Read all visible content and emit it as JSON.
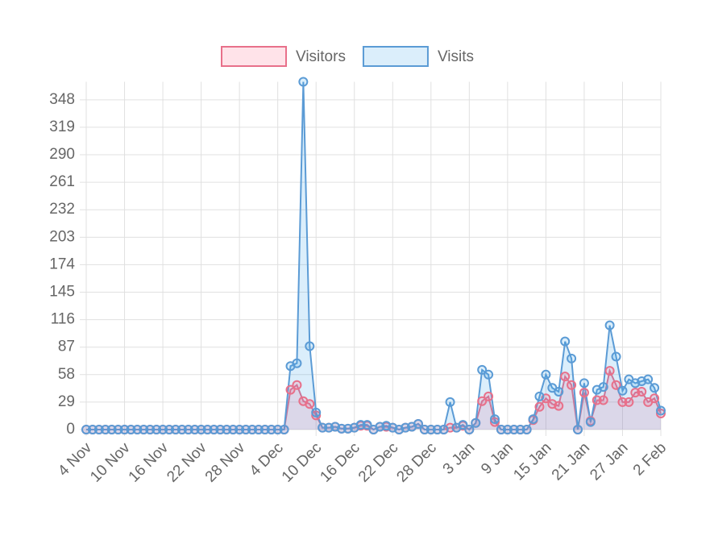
{
  "chart_data": {
    "type": "line",
    "categories": [
      "4 Nov",
      null,
      null,
      null,
      null,
      null,
      "10 Nov",
      null,
      null,
      null,
      null,
      null,
      "16 Nov",
      null,
      null,
      null,
      null,
      null,
      "22 Nov",
      null,
      null,
      null,
      null,
      null,
      "28 Nov",
      null,
      null,
      null,
      null,
      null,
      "4 Dec",
      null,
      null,
      null,
      null,
      null,
      "10 Dec",
      null,
      null,
      null,
      null,
      null,
      "16 Dec",
      null,
      null,
      null,
      null,
      null,
      "22 Dec",
      null,
      null,
      null,
      null,
      null,
      "28 Dec",
      null,
      null,
      null,
      null,
      null,
      "3 Jan",
      null,
      null,
      null,
      null,
      null,
      "9 Jan",
      null,
      null,
      null,
      null,
      null,
      "15 Jan",
      null,
      null,
      null,
      null,
      null,
      "21 Jan",
      null,
      null,
      null,
      null,
      null,
      "27 Jan",
      null,
      null,
      null,
      null,
      null,
      "2 Feb"
    ],
    "series": [
      {
        "name": "Visitors",
        "color": "#e8708a",
        "fill": "rgba(255,99,132,0.18)",
        "values": [
          0,
          0,
          0,
          0,
          0,
          0,
          0,
          0,
          0,
          0,
          0,
          0,
          0,
          0,
          0,
          0,
          0,
          0,
          0,
          0,
          0,
          0,
          0,
          0,
          0,
          0,
          0,
          0,
          0,
          0,
          0,
          0,
          42,
          47,
          30,
          27,
          15,
          2,
          2,
          3,
          1,
          1,
          2,
          4,
          4,
          0,
          3,
          3,
          2,
          0,
          2,
          3,
          6,
          0,
          0,
          0,
          0,
          2,
          2,
          4,
          0,
          7,
          30,
          35,
          8,
          0,
          0,
          0,
          0,
          0,
          10,
          24,
          33,
          27,
          25,
          56,
          47,
          0,
          39,
          9,
          31,
          31,
          62,
          47,
          29,
          29,
          39,
          40,
          29,
          33,
          17
        ]
      },
      {
        "name": "Visits",
        "color": "#5b9bd5",
        "fill": "rgba(54,162,235,0.18)",
        "values": [
          0,
          0,
          0,
          0,
          0,
          0,
          0,
          0,
          0,
          0,
          0,
          0,
          0,
          0,
          0,
          0,
          0,
          0,
          0,
          0,
          0,
          0,
          0,
          0,
          0,
          0,
          0,
          0,
          0,
          0,
          0,
          0,
          67,
          70,
          367,
          88,
          18,
          2,
          2,
          3,
          1,
          1,
          2,
          5,
          5,
          0,
          3,
          4,
          2,
          0,
          2,
          3,
          6,
          0,
          0,
          0,
          0,
          29,
          2,
          5,
          0,
          7,
          63,
          58,
          11,
          0,
          0,
          0,
          0,
          0,
          11,
          35,
          58,
          44,
          40,
          93,
          75,
          0,
          49,
          8,
          42,
          45,
          110,
          77,
          41,
          53,
          49,
          51,
          53,
          44,
          20
        ]
      }
    ],
    "ylim": [
      0,
      367
    ],
    "yticks": [
      0,
      29,
      58,
      87,
      116,
      145,
      174,
      203,
      232,
      261,
      290,
      319,
      348
    ],
    "grid": true
  }
}
